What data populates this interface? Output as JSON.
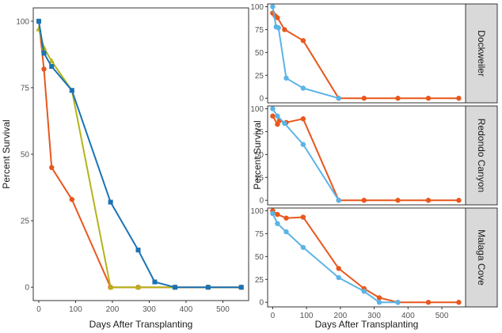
{
  "colors": {
    "orange": "#e8571d",
    "blue": "#1a73b5",
    "olive": "#b5b41a",
    "lightblue": "#5bb4e6",
    "strip_bg": "#d9d9d9",
    "axis": "#333333"
  },
  "chart_data": [
    {
      "type": "line",
      "panel": "combined",
      "xlabel": "Days After Transplanting",
      "ylabel": "Percent Survival",
      "xlim": [
        -15,
        570
      ],
      "ylim": [
        -5,
        105
      ],
      "xticks": [
        0,
        100,
        200,
        300,
        400,
        500
      ],
      "yticks": [
        0,
        25,
        50,
        75,
        100
      ],
      "series": [
        {
          "name": "orange",
          "color_key": "orange",
          "x": [
            0,
            14,
            35,
            90,
            195,
            270,
            370,
            460,
            550
          ],
          "y": [
            100,
            82,
            45,
            33,
            0,
            0,
            0,
            0,
            0
          ]
        },
        {
          "name": "olive",
          "color_key": "olive",
          "x": [
            0,
            14,
            35,
            90,
            195,
            270,
            370,
            460,
            550
          ],
          "y": [
            97,
            90,
            85,
            74,
            0,
            0,
            0,
            0,
            0
          ]
        },
        {
          "name": "blue",
          "color_key": "blue",
          "x": [
            0,
            14,
            35,
            90,
            195,
            270,
            315,
            370,
            460,
            550
          ],
          "y": [
            100,
            88,
            83,
            74,
            32,
            14,
            2,
            0,
            0,
            0
          ]
        }
      ]
    },
    {
      "type": "line",
      "panel": "facet",
      "strip": "Dockweiler",
      "xlabel": "",
      "ylabel": "",
      "xlim": [
        -15,
        570
      ],
      "ylim": [
        -5,
        103
      ],
      "xticks": [],
      "yticks": [
        0,
        25,
        50,
        75,
        100
      ],
      "series": [
        {
          "name": "orange",
          "color_key": "orange",
          "x": [
            0,
            7,
            14,
            35,
            90,
            195,
            270,
            370,
            460,
            550
          ],
          "y": [
            93,
            90,
            88,
            75,
            63,
            0,
            0,
            0,
            0,
            0
          ]
        },
        {
          "name": "lightblue",
          "color_key": "lightblue",
          "x": [
            0,
            10,
            17,
            40,
            90,
            195
          ],
          "y": [
            100,
            78,
            77,
            22,
            11,
            0
          ]
        }
      ]
    },
    {
      "type": "line",
      "panel": "facet",
      "strip": "Redondo Canyon",
      "xlabel": "",
      "ylabel": "Percent Survival",
      "xlim": [
        -15,
        570
      ],
      "ylim": [
        -5,
        103
      ],
      "xticks": [],
      "yticks": [
        0,
        25,
        50,
        75,
        100
      ],
      "series": [
        {
          "name": "orange",
          "color_key": "orange",
          "x": [
            0,
            14,
            20,
            40,
            90,
            195,
            270,
            370,
            460,
            550
          ],
          "y": [
            92,
            83,
            87,
            85,
            89,
            0,
            0,
            0,
            0,
            0
          ]
        },
        {
          "name": "lightblue",
          "color_key": "lightblue",
          "x": [
            0,
            14,
            35,
            90,
            195
          ],
          "y": [
            100,
            92,
            84,
            61,
            0
          ]
        }
      ]
    },
    {
      "type": "line",
      "panel": "facet",
      "strip": "Malaga Cove",
      "xlabel": "Days After Transplanting",
      "ylabel": "",
      "xlim": [
        -15,
        570
      ],
      "ylim": [
        -5,
        103
      ],
      "xticks": [
        0,
        100,
        200,
        300,
        400,
        500
      ],
      "yticks": [
        0,
        25,
        50,
        75,
        100
      ],
      "series": [
        {
          "name": "orange",
          "color_key": "orange",
          "x": [
            0,
            14,
            40,
            90,
            195,
            270,
            315,
            370,
            460,
            550
          ],
          "y": [
            100,
            96,
            92,
            93,
            37,
            15,
            5,
            0,
            0,
            0
          ]
        },
        {
          "name": "lightblue",
          "color_key": "lightblue",
          "x": [
            0,
            14,
            40,
            90,
            195,
            270,
            315,
            370
          ],
          "y": [
            97,
            86,
            77,
            60,
            27,
            12,
            0,
            0
          ]
        }
      ]
    }
  ]
}
